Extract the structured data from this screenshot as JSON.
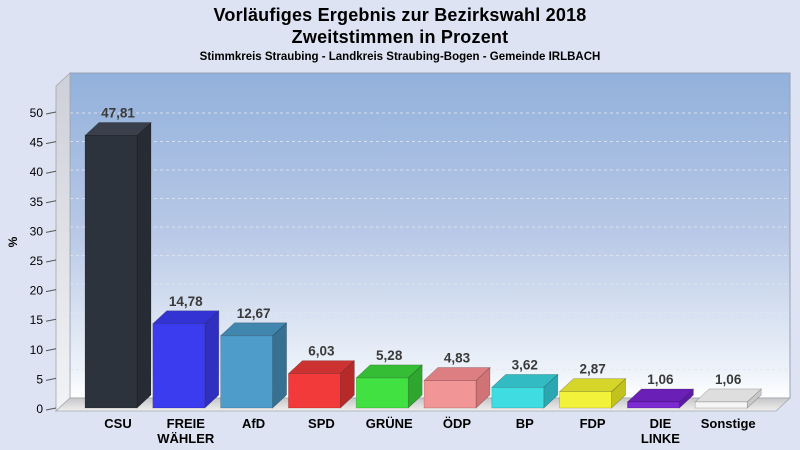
{
  "header": {
    "title_line1": "Vorläufiges Ergebnis zur Bezirkswahl 2018",
    "title_line2": "Zweitstimmen in Prozent",
    "subtitle": "Stimmkreis Straubing - Landkreis Straubing-Bogen - Gemeinde IRLBACH"
  },
  "colors": {
    "page_bg": "#dde3f2",
    "plot_gradient_top": "#92b1dc",
    "plot_gradient_mid": "#b9c9e6",
    "plot_gradient_bottom": "#ffffff",
    "plot_border": "#97a0b4",
    "wall_top": "#cdd0d8",
    "wall_bottom": "#f2f3f6",
    "floor_back": "#c6c6c8",
    "floor_front": "#f0f0f0",
    "gridline": "#e2e7f0",
    "value_label": "#3a3a3a",
    "category_label": "#000000",
    "tick_label": "#000000"
  },
  "chart_data": {
    "type": "bar",
    "style": "3d-column",
    "title": "Vorläufiges Ergebnis zur Bezirkswahl 2018",
    "subtitle": "Zweitstimmen in Prozent",
    "caption": "Stimmkreis Straubing - Landkreis Straubing-Bogen - Gemeinde IRLBACH",
    "xlabel": "",
    "ylabel": "%",
    "ylim": [
      0,
      57
    ],
    "yticks": [
      0,
      5,
      10,
      15,
      20,
      25,
      30,
      35,
      40,
      45,
      50
    ],
    "grid": "dashed-horizontal",
    "legend": "none",
    "categories": [
      "CSU",
      "FREIE WÄHLER",
      "AfD",
      "SPD",
      "GRÜNE",
      "ÖDP",
      "BP",
      "FDP",
      "DIE LINKE",
      "Sonstige"
    ],
    "values": [
      47.81,
      14.78,
      12.67,
      6.03,
      5.28,
      4.83,
      3.62,
      2.87,
      1.06,
      1.06
    ],
    "value_labels": [
      "47,81",
      "14,78",
      "12,67",
      "6,03",
      "5,28",
      "4,83",
      "3,62",
      "2,87",
      "1,06",
      "1,06"
    ],
    "series": [
      {
        "name": "CSU",
        "value": 47.81,
        "value_label": "47,81",
        "label_lines": [
          "CSU"
        ],
        "front": "#2d333d",
        "top": "#39404c",
        "side": "#262b34"
      },
      {
        "name": "FREIE WÄHLER",
        "value": 14.78,
        "value_label": "14,78",
        "label_lines": [
          "FREIE",
          "WÄHLER"
        ],
        "front": "#3b3bf0",
        "top": "#3333d4",
        "side": "#2f2fc0"
      },
      {
        "name": "AfD",
        "value": 12.67,
        "value_label": "12,67",
        "label_lines": [
          "AfD"
        ],
        "front": "#4d9cca",
        "top": "#4186ae",
        "side": "#367192"
      },
      {
        "name": "SPD",
        "value": 6.03,
        "value_label": "6,03",
        "label_lines": [
          "SPD"
        ],
        "front": "#f23a3a",
        "top": "#cd3232",
        "side": "#b62a2a"
      },
      {
        "name": "GRÜNE",
        "value": 5.28,
        "value_label": "5,28",
        "label_lines": [
          "GRÜNE"
        ],
        "front": "#42e142",
        "top": "#35bd35",
        "side": "#2da72d"
      },
      {
        "name": "ÖDP",
        "value": 4.83,
        "value_label": "4,83",
        "label_lines": [
          "ÖDP"
        ],
        "front": "#f29597",
        "top": "#dd7f82",
        "side": "#cf7376"
      },
      {
        "name": "BP",
        "value": 3.62,
        "value_label": "3,62",
        "label_lines": [
          "BP"
        ],
        "front": "#3fdde1",
        "top": "#32bbc2",
        "side": "#2aa7b0"
      },
      {
        "name": "FDP",
        "value": 2.87,
        "value_label": "2,87",
        "label_lines": [
          "FDP"
        ],
        "front": "#f2f23a",
        "top": "#d6d62a",
        "side": "#c2c21e"
      },
      {
        "name": "DIE LINKE",
        "value": 1.06,
        "value_label": "1,06",
        "label_lines": [
          "DIE",
          "LINKE"
        ],
        "front": "#7c2ad2",
        "top": "#6a20b6",
        "side": "#5c1ba2"
      },
      {
        "name": "Sonstige",
        "value": 1.06,
        "value_label": "1,06",
        "label_lines": [
          "Sonstige"
        ],
        "front": "#f5f5f5",
        "top": "#dedede",
        "side": "#c9c9c9"
      }
    ]
  }
}
